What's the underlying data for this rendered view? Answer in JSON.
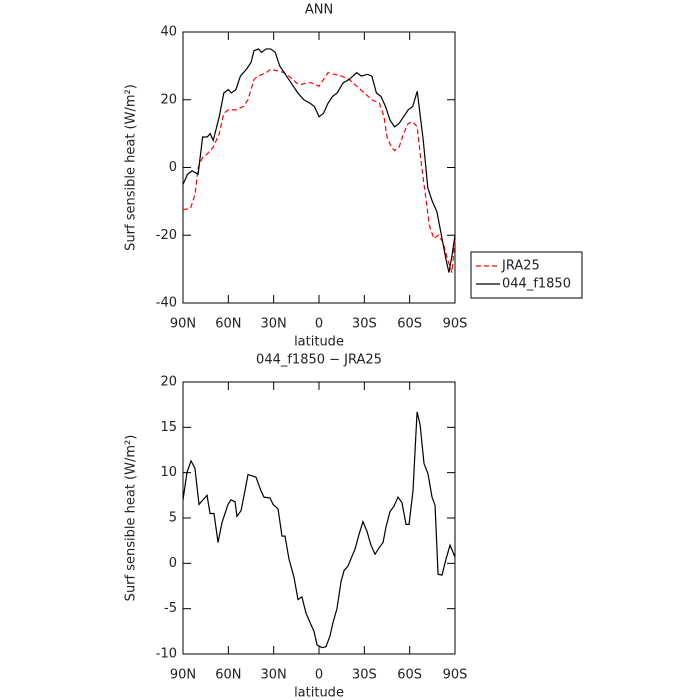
{
  "chart_data": [
    {
      "type": "line",
      "title": "ANN",
      "xlabel": "latitude",
      "ylabel": "Surf sensible heat (W/m²)",
      "xlim": [
        90,
        -90
      ],
      "ylim": [
        -40,
        40
      ],
      "xticks": [
        {
          "value": 90,
          "label": "90N"
        },
        {
          "value": 60,
          "label": "60N"
        },
        {
          "value": 30,
          "label": "30N"
        },
        0,
        {
          "value": -30,
          "label": "30S"
        },
        {
          "value": -60,
          "label": "60S"
        },
        {
          "value": -90,
          "label": "90S"
        }
      ],
      "yticks": [
        -40,
        -20,
        0,
        20,
        40
      ],
      "legend": "outside-right",
      "series": [
        {
          "name": "JRA25",
          "color": "#ff0000",
          "dash": "5,3",
          "x": [
            90,
            85,
            82,
            80,
            77,
            74,
            70,
            66,
            63,
            60,
            55,
            50,
            47,
            43,
            40,
            35,
            32,
            27,
            23,
            20,
            15,
            12,
            8,
            5,
            0,
            -3,
            -6,
            -10,
            -15,
            -20,
            -25,
            -30,
            -35,
            -40,
            -43,
            -45,
            -48,
            -50,
            -53,
            -56,
            -59,
            -62,
            -65,
            -68,
            -71,
            -73,
            -76,
            -79,
            -82,
            -85,
            -88,
            -90
          ],
          "values": [
            -12.5,
            -12,
            -8,
            0,
            3,
            4,
            6,
            10,
            16,
            17,
            17,
            18,
            20,
            26,
            27,
            28,
            29,
            28.5,
            28,
            27,
            25,
            24.5,
            25,
            25,
            24,
            26,
            28,
            27.5,
            27,
            26,
            24,
            22,
            20,
            19,
            15,
            9,
            6,
            5,
            6,
            10,
            13,
            13.5,
            12,
            0,
            -10,
            -17,
            -21,
            -20,
            -22,
            -27,
            -31,
            -21
          ]
        },
        {
          "name": "044_f1850",
          "color": "#000000",
          "dash": "none",
          "x": [
            90,
            87,
            84,
            80,
            77,
            74,
            72,
            70,
            66,
            63,
            60,
            58,
            55,
            52,
            48,
            45,
            43,
            40,
            38,
            35,
            32,
            29,
            26,
            23,
            20,
            17,
            14,
            10,
            6,
            3,
            0,
            -3,
            -6,
            -9,
            -12,
            -16,
            -20,
            -25,
            -28,
            -32,
            -35,
            -38,
            -41,
            -44,
            -47,
            -50,
            -53,
            -56,
            -59,
            -62,
            -65,
            -69,
            -72,
            -75,
            -78,
            -81,
            -84,
            -86,
            -88,
            -90
          ],
          "values": [
            -5,
            -2,
            -1,
            -2,
            9,
            9,
            10,
            8,
            15,
            22,
            23,
            22,
            23,
            27,
            29,
            31,
            34.5,
            35,
            34,
            35,
            35,
            34,
            30,
            28,
            26,
            24,
            22,
            20,
            19,
            18,
            15,
            16,
            19,
            21,
            22,
            25,
            26,
            28,
            27,
            27.5,
            27,
            22,
            21,
            18,
            14,
            12,
            13,
            15,
            17,
            18,
            22.5,
            8,
            -6,
            -10,
            -13,
            -20,
            -27,
            -31,
            -26,
            -20
          ]
        }
      ]
    },
    {
      "type": "line",
      "title": "044_f1850 − JRA25",
      "xlabel": "latitude",
      "ylabel": "Surf sensible heat (W/m²)",
      "xlim": [
        90,
        -90
      ],
      "ylim": [
        -10,
        20
      ],
      "xticks": [
        {
          "value": 90,
          "label": "90N"
        },
        {
          "value": 60,
          "label": "60N"
        },
        {
          "value": 30,
          "label": "30N"
        },
        0,
        {
          "value": -30,
          "label": "30S"
        },
        {
          "value": -60,
          "label": "60S"
        },
        {
          "value": -90,
          "label": "90S"
        }
      ],
      "yticks": [
        -10,
        -5,
        0,
        5,
        10,
        15,
        20
      ],
      "color": "#000000",
      "x": [
        90,
        87.4,
        84.7,
        82.1,
        79.4,
        76.8,
        74.1,
        72.1,
        69.5,
        66.8,
        64.2,
        60.2,
        58.3,
        55.6,
        54.3,
        51.6,
        49,
        47,
        41.7,
        38.4,
        36.4,
        32.4,
        30.4,
        27.1,
        24.5,
        22.5,
        19.9,
        16.6,
        13.9,
        11.3,
        8.6,
        6,
        3.3,
        1.3,
        -2,
        -4.6,
        -7.3,
        -9.3,
        -11.9,
        -14.6,
        -16.6,
        -19.2,
        -21.9,
        -23.9,
        -26.5,
        -29.1,
        -31.8,
        -34.4,
        -37.1,
        -39.7,
        -42.4,
        -44.3,
        -47,
        -49.6,
        -52.3,
        -54.9,
        -57.6,
        -59.6,
        -62.2,
        -64.9,
        -66.9,
        -69.5,
        -72.1,
        -74.8,
        -76.8,
        -78.8,
        -81.4,
        -84.1,
        -86.7,
        -90
      ],
      "values": [
        7,
        10,
        11.3,
        10.5,
        6.5,
        7,
        7.5,
        5.5,
        5.5,
        2.3,
        4.5,
        6.5,
        7,
        6.8,
        5.2,
        5.8,
        8,
        9.8,
        9.5,
        8,
        7.3,
        7.2,
        6.5,
        6,
        3,
        3,
        0.5,
        -1.5,
        -4,
        -3.7,
        -5.5,
        -6.5,
        -7.5,
        -9,
        -9.3,
        -9.2,
        -8,
        -6.5,
        -5,
        -2,
        -0.8,
        -0.3,
        0.8,
        1.6,
        3.2,
        4.6,
        3.5,
        2,
        1,
        1.7,
        2.3,
        4,
        5.7,
        6.3,
        7.3,
        6.7,
        4.3,
        4.3,
        8,
        16.7,
        15.3,
        11,
        9.9,
        7.3,
        6.4,
        -1.2,
        -1.3,
        0.5,
        2,
        0.7
      ]
    }
  ]
}
